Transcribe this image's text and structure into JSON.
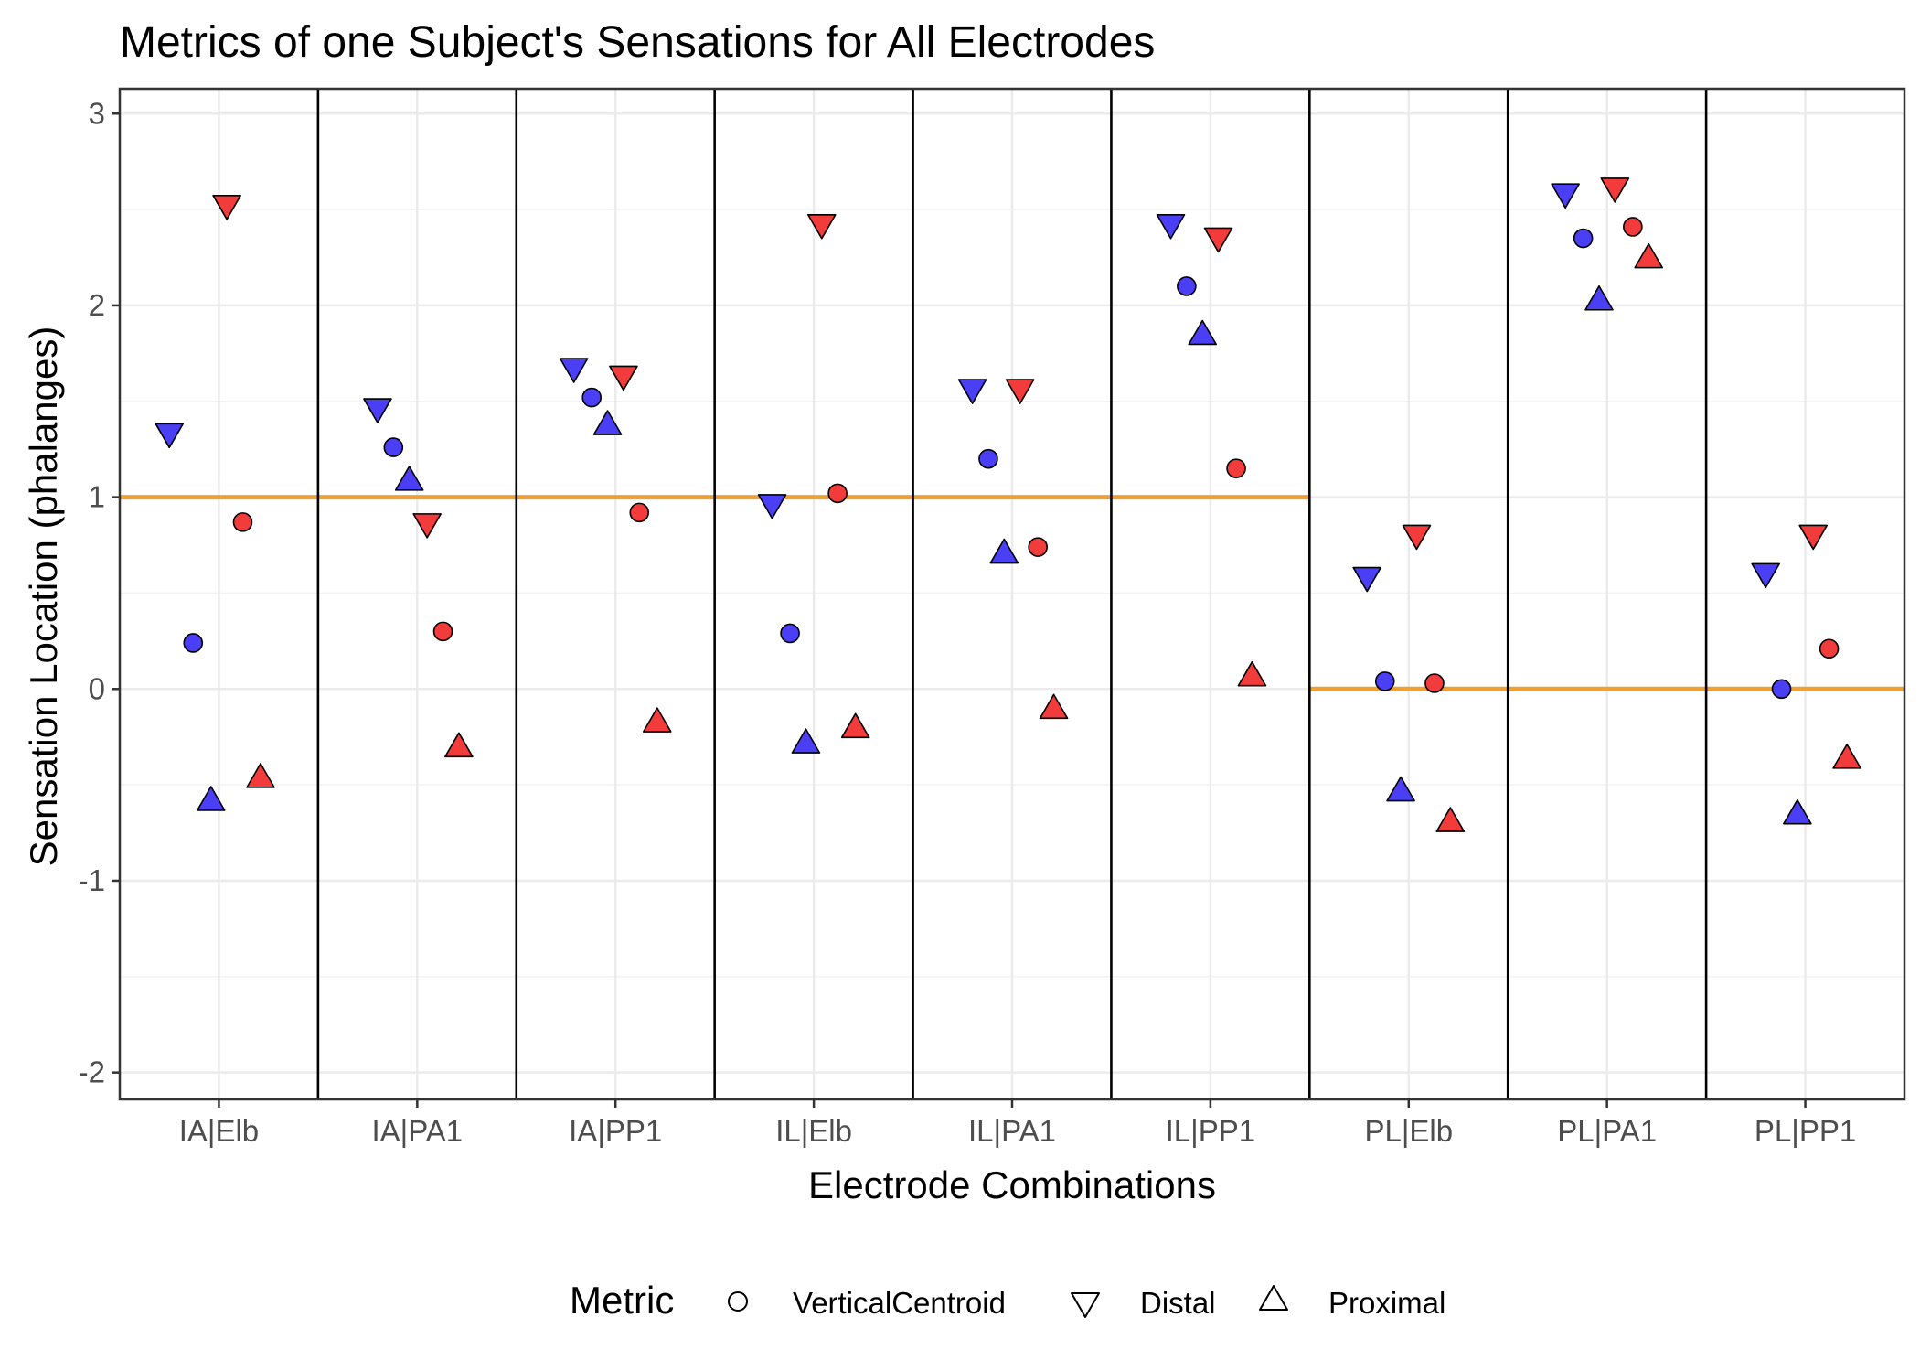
{
  "chart_data": {
    "type": "scatter",
    "title": "Metrics of one Subject's Sensations for All Electrodes",
    "xlabel": "Electrode Combinations",
    "ylabel": "Sensation Location (phalanges)",
    "categories": [
      "IA|Elb",
      "IA|PA1",
      "IA|PP1",
      "IL|Elb",
      "IL|PA1",
      "IL|PP1",
      "PL|Elb",
      "PL|PA1",
      "PL|PP1"
    ],
    "ylim": [
      -2.14,
      3.13
    ],
    "yticks": [
      -2,
      -1,
      0,
      1,
      2,
      3
    ],
    "grid": true,
    "legend": {
      "title": "Metric",
      "position": "bottom",
      "entries": [
        {
          "label": "VerticalCentroid",
          "shape": "circle"
        },
        {
          "label": "Distal",
          "shape": "triangle-down"
        },
        {
          "label": "Proximal",
          "shape": "triangle-up"
        }
      ]
    },
    "colors": {
      "blue": "#4b3ff5",
      "red": "#f23b3b",
      "reference_line": "#f0a032",
      "separator": "#000000"
    },
    "reference_lines": [
      1,
      1,
      1,
      1,
      1,
      1,
      0,
      0,
      0
    ],
    "points": [
      {
        "category": "IA|Elb",
        "offset": -0.25,
        "metric": "Distal",
        "color": "blue",
        "y": 1.34
      },
      {
        "category": "IA|Elb",
        "offset": -0.13,
        "metric": "VerticalCentroid",
        "color": "blue",
        "y": 0.24
      },
      {
        "category": "IA|Elb",
        "offset": -0.04,
        "metric": "Proximal",
        "color": "blue",
        "y": -0.59
      },
      {
        "category": "IA|Elb",
        "offset": 0.04,
        "metric": "Distal",
        "color": "red",
        "y": 2.53
      },
      {
        "category": "IA|Elb",
        "offset": 0.12,
        "metric": "VerticalCentroid",
        "color": "red",
        "y": 0.87
      },
      {
        "category": "IA|Elb",
        "offset": 0.21,
        "metric": "Proximal",
        "color": "red",
        "y": -0.47
      },
      {
        "category": "IA|PA1",
        "offset": -0.2,
        "metric": "Distal",
        "color": "blue",
        "y": 1.47
      },
      {
        "category": "IA|PA1",
        "offset": -0.12,
        "metric": "VerticalCentroid",
        "color": "blue",
        "y": 1.26
      },
      {
        "category": "IA|PA1",
        "offset": -0.04,
        "metric": "Proximal",
        "color": "blue",
        "y": 1.08
      },
      {
        "category": "IA|PA1",
        "offset": 0.05,
        "metric": "Distal",
        "color": "red",
        "y": 0.87
      },
      {
        "category": "IA|PA1",
        "offset": 0.13,
        "metric": "VerticalCentroid",
        "color": "red",
        "y": 0.3
      },
      {
        "category": "IA|PA1",
        "offset": 0.21,
        "metric": "Proximal",
        "color": "red",
        "y": -0.31
      },
      {
        "category": "IA|PP1",
        "offset": -0.21,
        "metric": "Distal",
        "color": "blue",
        "y": 1.68
      },
      {
        "category": "IA|PP1",
        "offset": -0.12,
        "metric": "VerticalCentroid",
        "color": "blue",
        "y": 1.52
      },
      {
        "category": "IA|PP1",
        "offset": -0.04,
        "metric": "Proximal",
        "color": "blue",
        "y": 1.37
      },
      {
        "category": "IA|PP1",
        "offset": 0.04,
        "metric": "Distal",
        "color": "red",
        "y": 1.64
      },
      {
        "category": "IA|PP1",
        "offset": 0.12,
        "metric": "VerticalCentroid",
        "color": "red",
        "y": 0.92
      },
      {
        "category": "IA|PP1",
        "offset": 0.21,
        "metric": "Proximal",
        "color": "red",
        "y": -0.18
      },
      {
        "category": "IL|Elb",
        "offset": -0.21,
        "metric": "Distal",
        "color": "blue",
        "y": 0.97
      },
      {
        "category": "IL|Elb",
        "offset": -0.12,
        "metric": "VerticalCentroid",
        "color": "blue",
        "y": 0.29
      },
      {
        "category": "IL|Elb",
        "offset": -0.04,
        "metric": "Proximal",
        "color": "blue",
        "y": -0.29
      },
      {
        "category": "IL|Elb",
        "offset": 0.04,
        "metric": "Distal",
        "color": "red",
        "y": 2.43
      },
      {
        "category": "IL|Elb",
        "offset": 0.12,
        "metric": "VerticalCentroid",
        "color": "red",
        "y": 1.02
      },
      {
        "category": "IL|Elb",
        "offset": 0.21,
        "metric": "Proximal",
        "color": "red",
        "y": -0.21
      },
      {
        "category": "IL|PA1",
        "offset": -0.2,
        "metric": "Distal",
        "color": "blue",
        "y": 1.57
      },
      {
        "category": "IL|PA1",
        "offset": -0.12,
        "metric": "VerticalCentroid",
        "color": "blue",
        "y": 1.2
      },
      {
        "category": "IL|PA1",
        "offset": -0.04,
        "metric": "Proximal",
        "color": "blue",
        "y": 0.7
      },
      {
        "category": "IL|PA1",
        "offset": 0.04,
        "metric": "Distal",
        "color": "red",
        "y": 1.57
      },
      {
        "category": "IL|PA1",
        "offset": 0.13,
        "metric": "VerticalCentroid",
        "color": "red",
        "y": 0.74
      },
      {
        "category": "IL|PA1",
        "offset": 0.21,
        "metric": "Proximal",
        "color": "red",
        "y": -0.11
      },
      {
        "category": "IL|PP1",
        "offset": -0.2,
        "metric": "Distal",
        "color": "blue",
        "y": 2.43
      },
      {
        "category": "IL|PP1",
        "offset": -0.12,
        "metric": "VerticalCentroid",
        "color": "blue",
        "y": 2.1
      },
      {
        "category": "IL|PP1",
        "offset": -0.04,
        "metric": "Proximal",
        "color": "blue",
        "y": 1.84
      },
      {
        "category": "IL|PP1",
        "offset": 0.04,
        "metric": "Distal",
        "color": "red",
        "y": 2.36
      },
      {
        "category": "IL|PP1",
        "offset": 0.13,
        "metric": "VerticalCentroid",
        "color": "red",
        "y": 1.15
      },
      {
        "category": "IL|PP1",
        "offset": 0.21,
        "metric": "Proximal",
        "color": "red",
        "y": 0.06
      },
      {
        "category": "PL|Elb",
        "offset": -0.21,
        "metric": "Distal",
        "color": "blue",
        "y": 0.59
      },
      {
        "category": "PL|Elb",
        "offset": -0.12,
        "metric": "VerticalCentroid",
        "color": "blue",
        "y": 0.04
      },
      {
        "category": "PL|Elb",
        "offset": -0.04,
        "metric": "Proximal",
        "color": "blue",
        "y": -0.54
      },
      {
        "category": "PL|Elb",
        "offset": 0.04,
        "metric": "Distal",
        "color": "red",
        "y": 0.81
      },
      {
        "category": "PL|Elb",
        "offset": 0.13,
        "metric": "VerticalCentroid",
        "color": "red",
        "y": 0.03
      },
      {
        "category": "PL|Elb",
        "offset": 0.21,
        "metric": "Proximal",
        "color": "red",
        "y": -0.7
      },
      {
        "category": "PL|PA1",
        "offset": -0.21,
        "metric": "Distal",
        "color": "blue",
        "y": 2.59
      },
      {
        "category": "PL|PA1",
        "offset": -0.12,
        "metric": "VerticalCentroid",
        "color": "blue",
        "y": 2.35
      },
      {
        "category": "PL|PA1",
        "offset": -0.04,
        "metric": "Proximal",
        "color": "blue",
        "y": 2.02
      },
      {
        "category": "PL|PA1",
        "offset": 0.04,
        "metric": "Distal",
        "color": "red",
        "y": 2.62
      },
      {
        "category": "PL|PA1",
        "offset": 0.13,
        "metric": "VerticalCentroid",
        "color": "red",
        "y": 2.41
      },
      {
        "category": "PL|PA1",
        "offset": 0.21,
        "metric": "Proximal",
        "color": "red",
        "y": 2.24
      },
      {
        "category": "PL|PP1",
        "offset": -0.2,
        "metric": "Distal",
        "color": "blue",
        "y": 0.61
      },
      {
        "category": "PL|PP1",
        "offset": -0.12,
        "metric": "VerticalCentroid",
        "color": "blue",
        "y": 0.0
      },
      {
        "category": "PL|PP1",
        "offset": -0.04,
        "metric": "Proximal",
        "color": "blue",
        "y": -0.66
      },
      {
        "category": "PL|PP1",
        "offset": 0.04,
        "metric": "Distal",
        "color": "red",
        "y": 0.81
      },
      {
        "category": "PL|PP1",
        "offset": 0.12,
        "metric": "VerticalCentroid",
        "color": "red",
        "y": 0.21
      },
      {
        "category": "PL|PP1",
        "offset": 0.21,
        "metric": "Proximal",
        "color": "red",
        "y": -0.37
      }
    ]
  }
}
